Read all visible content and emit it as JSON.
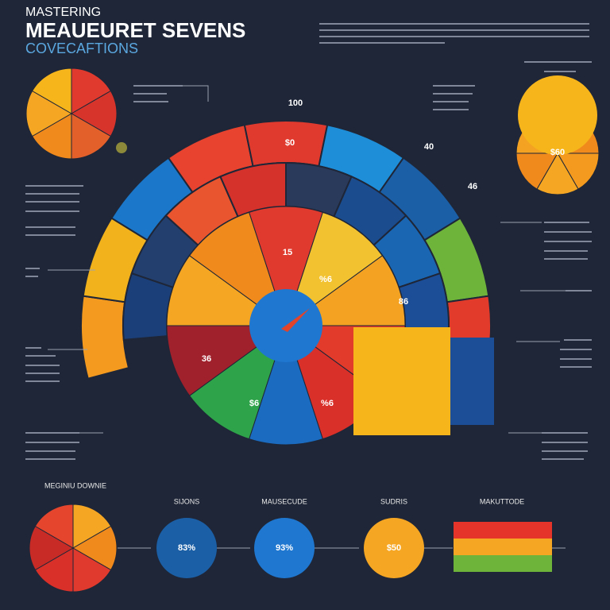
{
  "header": {
    "kicker": "MASTERING",
    "title": "MEAUEURET SEVENS",
    "subtitle": "COVECAFTIONS"
  },
  "gauge_labels": [
    "100",
    "$0",
    "40",
    "46",
    "15",
    "%6",
    "86",
    "36",
    "$6",
    "%6"
  ],
  "side_value": "$60",
  "bottom": [
    {
      "title": "MEGINIU DOWNIE"
    },
    {
      "title": "SIJONS",
      "value": "83%"
    },
    {
      "title": "MAUSECUDE",
      "value": "93%"
    },
    {
      "title": "SUDRIS",
      "value": "$50"
    },
    {
      "title": "MAKUTTODE"
    }
  ]
}
